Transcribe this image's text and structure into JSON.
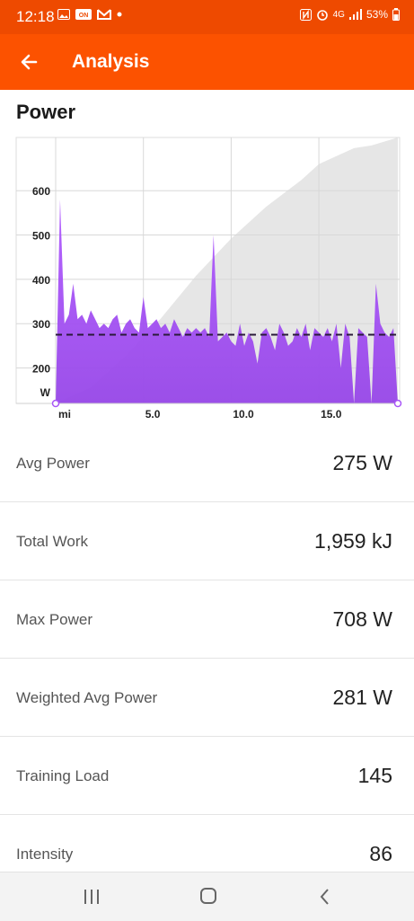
{
  "status_bar": {
    "time": "12:18",
    "battery": "53%",
    "network": "4G",
    "icons": [
      "image-icon",
      "cn-badge-icon",
      "gmail-icon",
      "dot-icon",
      "nfc-icon",
      "alarm-icon",
      "signal-icon",
      "battery-icon"
    ]
  },
  "app_bar": {
    "title": "Analysis",
    "back_icon": "arrow-left-icon"
  },
  "section": {
    "title": "Power"
  },
  "chart_data": {
    "type": "area",
    "ylabel": "W",
    "xlabel": "mi",
    "yticks": [
      "600",
      "500",
      "400",
      "300",
      "200"
    ],
    "xticks": [
      "mi",
      "5.0",
      "10.0",
      "15.0"
    ],
    "x": [
      0,
      0.25,
      0.5,
      0.75,
      1,
      1.25,
      1.5,
      1.75,
      2,
      2.25,
      2.5,
      2.75,
      3,
      3.25,
      3.5,
      3.75,
      4,
      4.25,
      4.5,
      4.75,
      5,
      5.25,
      5.5,
      5.75,
      6,
      6.25,
      6.5,
      6.75,
      7,
      7.25,
      7.5,
      7.75,
      8,
      8.25,
      8.5,
      8.75,
      9,
      9.25,
      9.5,
      9.75,
      10,
      10.25,
      10.5,
      10.75,
      11,
      11.25,
      11.5,
      11.75,
      12,
      12.25,
      12.5,
      12.75,
      13,
      13.25,
      13.5,
      13.75,
      14,
      14.25,
      14.5,
      14.75,
      15,
      15.25,
      15.5,
      15.75,
      16,
      16.25,
      16.5,
      16.75,
      17,
      17.25,
      17.5,
      17.75,
      18,
      18.25,
      18.5,
      18.75,
      19,
      19.25,
      19.5
    ],
    "power_w": [
      110,
      580,
      300,
      320,
      390,
      310,
      320,
      300,
      330,
      310,
      290,
      300,
      290,
      310,
      320,
      280,
      300,
      310,
      290,
      280,
      360,
      290,
      300,
      310,
      290,
      300,
      280,
      310,
      290,
      270,
      290,
      280,
      290,
      280,
      290,
      270,
      500,
      260,
      270,
      280,
      260,
      250,
      300,
      250,
      280,
      260,
      210,
      280,
      290,
      270,
      240,
      300,
      280,
      250,
      260,
      290,
      270,
      300,
      240,
      290,
      280,
      270,
      290,
      260,
      300,
      200,
      300,
      270,
      120,
      290,
      280,
      270,
      120,
      390,
      300,
      280,
      270,
      290,
      100
    ],
    "avg_line_w": 275,
    "elevation_series": "background area rising from start to finish",
    "ylim": [
      120,
      720
    ],
    "xlim": [
      0,
      19.5
    ],
    "series_color": "#a855f7",
    "elevation_color": "#e6e6e6"
  },
  "stats": [
    {
      "label": "Avg Power",
      "value": "275 W"
    },
    {
      "label": "Total Work",
      "value": "1,959 kJ"
    },
    {
      "label": "Max Power",
      "value": "708 W"
    },
    {
      "label": "Weighted Avg Power",
      "value": "281 W"
    },
    {
      "label": "Training Load",
      "value": "145"
    },
    {
      "label": "Intensity",
      "value": "86"
    }
  ],
  "nav": {
    "recent_icon": "recent-apps-icon",
    "home_icon": "home-icon",
    "back_icon": "back-chevron-icon"
  }
}
